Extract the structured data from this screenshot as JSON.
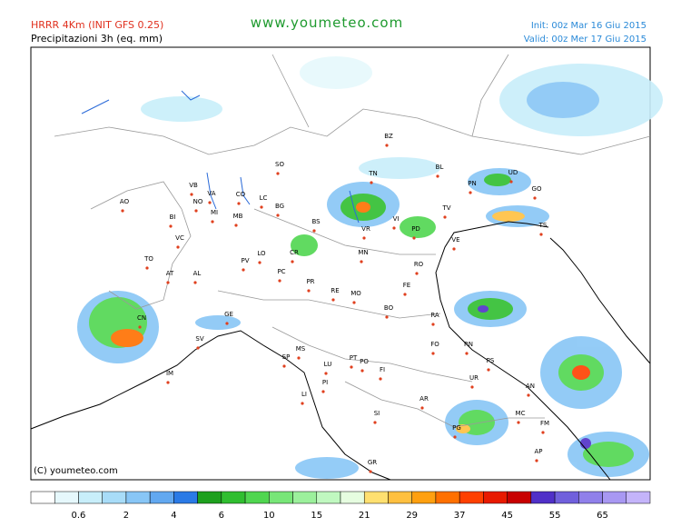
{
  "header": {
    "model": "HRRR 4Km (INIT GFS 0.25)",
    "field": "Precipitazioni 3h (eq. mm)",
    "site": "www.youmeteo.com",
    "init": "Init: 00z Mar 16 Giu 2015",
    "valid": "Valid: 00z Mer 17 Giu 2015"
  },
  "map": {
    "copyright": "(C) youmeteo.com",
    "cities": [
      "SO",
      "BZ",
      "TN",
      "BL",
      "UD",
      "PN",
      "GO",
      "VB",
      "VA",
      "CO",
      "LC",
      "BG",
      "BS",
      "VR",
      "VI",
      "TV",
      "VE",
      "TS",
      "AO",
      "BI",
      "NO",
      "MB",
      "MI",
      "VC",
      "LO",
      "CR",
      "PD",
      "TO",
      "AT",
      "AL",
      "PV",
      "PC",
      "MN",
      "RO",
      "FE",
      "PR",
      "RE",
      "MO",
      "BO",
      "RA",
      "CN",
      "GE",
      "SV",
      "SP",
      "MS",
      "LU",
      "PT",
      "PO",
      "FI",
      "PI",
      "LI",
      "AR",
      "SI",
      "FO",
      "RN",
      "PS",
      "UR",
      "AN",
      "PG",
      "MC",
      "FM",
      "AP",
      "GR",
      "IM"
    ]
  },
  "colorbar": {
    "colors": [
      "#ffffff",
      "#e6f8fc",
      "#c8eefa",
      "#a8dcf8",
      "#88c6f6",
      "#62a8f0",
      "#2a7ae6",
      "#1ea01e",
      "#30be30",
      "#50d650",
      "#78e678",
      "#9cf09c",
      "#c0f8c0",
      "#e6fde0",
      "#ffe070",
      "#ffc040",
      "#ffa010",
      "#ff7000",
      "#ff4000",
      "#e81a00",
      "#c80000",
      "#5030c8",
      "#7060dc",
      "#9080ea",
      "#a898f2",
      "#c4b4fa"
    ],
    "labels": [
      0.6,
      2,
      4,
      6,
      10,
      15,
      21,
      29,
      37,
      45,
      55,
      65
    ]
  }
}
